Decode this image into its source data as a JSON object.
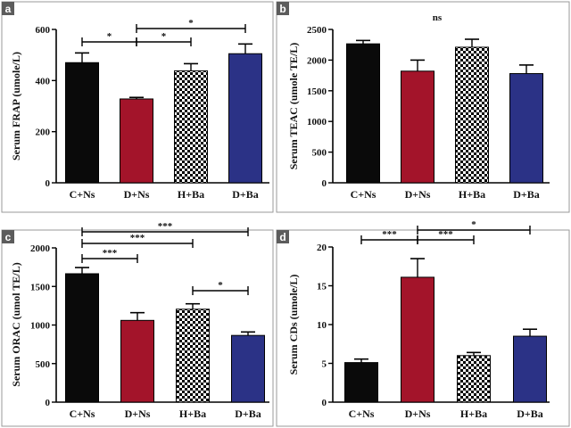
{
  "colors": {
    "black_bar": "#0a0a0a",
    "red_bar": "#a3142a",
    "blue_bar": "#2b3286",
    "checker_dark": "#000000",
    "checker_light": "#ffffff",
    "panel_border": "#9a9a9a",
    "label_bg": "#5c5c5c"
  },
  "chart_data": [
    {
      "panel": "a",
      "type": "bar",
      "ylabel": "Serum FRAP (umole/L)",
      "categories": [
        "C+Ns",
        "D+Ns",
        "H+Ba",
        "D+Ba"
      ],
      "fills": [
        "black",
        "red",
        "checker",
        "blue"
      ],
      "values": [
        470,
        328,
        438,
        505
      ],
      "errors": [
        38,
        6,
        28,
        38
      ],
      "ylim": [
        0,
        600
      ],
      "yticks": [
        0,
        200,
        400,
        600
      ],
      "significance": [
        {
          "from": 0,
          "to": 1,
          "text": "*"
        },
        {
          "from": 1,
          "to": 2,
          "text": "*"
        },
        {
          "from": 1,
          "to": 3,
          "text": "*"
        }
      ]
    },
    {
      "panel": "b",
      "type": "bar",
      "ylabel": "Serum TEAC (umole TE/L)",
      "categories": [
        "C+Ns",
        "D+Ns",
        "H+Ba",
        "D+Ba"
      ],
      "fills": [
        "black",
        "red",
        "checker",
        "blue"
      ],
      "values": [
        2265,
        1820,
        2210,
        1780
      ],
      "errors": [
        55,
        180,
        130,
        140
      ],
      "ylim": [
        0,
        2500
      ],
      "yticks": [
        0,
        500,
        1000,
        1500,
        2000,
        2500
      ],
      "significance": [],
      "annotation": "ns"
    },
    {
      "panel": "c",
      "type": "bar",
      "ylabel": "Serum ORAC (umol TE/L)",
      "categories": [
        "C+Ns",
        "D+Ns",
        "H+Ba",
        "D+Ba"
      ],
      "fills": [
        "black",
        "red",
        "checker",
        "blue"
      ],
      "values": [
        1665,
        1060,
        1205,
        865
      ],
      "errors": [
        80,
        100,
        70,
        45
      ],
      "ylim": [
        0,
        2000
      ],
      "yticks": [
        0,
        500,
        1000,
        1500,
        2000
      ],
      "significance": [
        {
          "from": 0,
          "to": 3,
          "text": "***"
        },
        {
          "from": 0,
          "to": 2,
          "text": "***"
        },
        {
          "from": 0,
          "to": 1,
          "text": "***"
        },
        {
          "from": 2,
          "to": 3,
          "text": "*"
        }
      ]
    },
    {
      "panel": "d",
      "type": "bar",
      "ylabel": "Serum CDs (umole/L)",
      "categories": [
        "C+Ns",
        "D+Ns",
        "H+Ba",
        "D+Ba"
      ],
      "fills": [
        "black",
        "red",
        "checker",
        "blue"
      ],
      "values": [
        5.1,
        16.1,
        6.0,
        8.5
      ],
      "errors": [
        0.45,
        2.4,
        0.4,
        0.9
      ],
      "ylim": [
        0,
        20
      ],
      "yticks": [
        0,
        5,
        10,
        15,
        20
      ],
      "significance": [
        {
          "from": 0,
          "to": 1,
          "text": "***"
        },
        {
          "from": 1,
          "to": 2,
          "text": "***"
        },
        {
          "from": 1,
          "to": 3,
          "text": "*"
        }
      ]
    }
  ]
}
